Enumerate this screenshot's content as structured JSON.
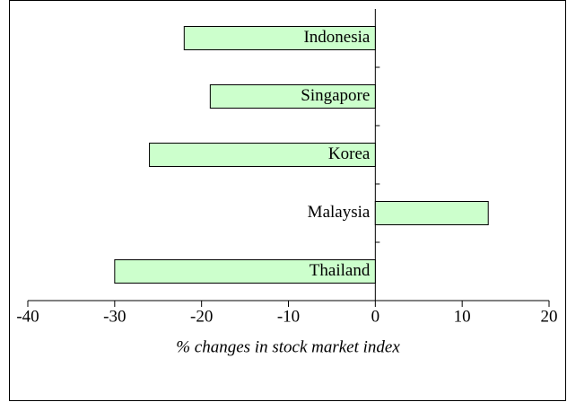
{
  "chart_data": {
    "type": "barh",
    "categories": [
      "Indonesia",
      "Singapore",
      "Korea",
      "Malaysia",
      "Thailand"
    ],
    "values": [
      -22,
      -19,
      -26,
      13,
      -30
    ],
    "color": "#ccffcc",
    "xlabel": "% changes in stock market index",
    "xlim": [
      -40,
      20
    ],
    "xticks": [
      -40,
      -30,
      -20,
      -10,
      0,
      10,
      20
    ],
    "grid": false
  }
}
